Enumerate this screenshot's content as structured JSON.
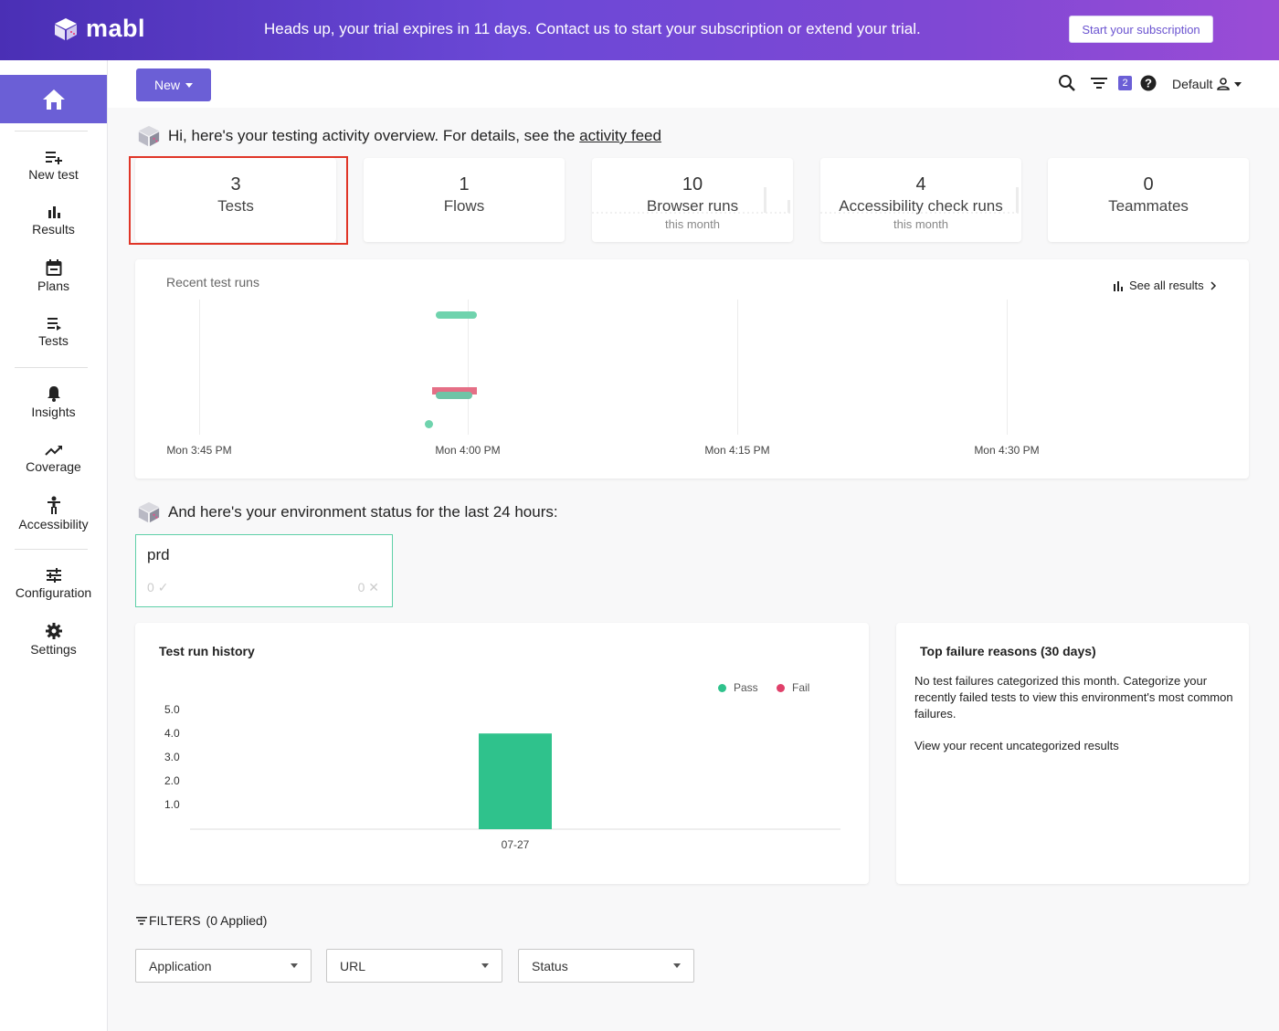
{
  "banner": {
    "logo": "mabl",
    "message": "Heads up, your trial expires in 11 days. Contact us to start your subscription or extend your trial.",
    "subscribe_button": "Start your subscription",
    "gradient_start": "#4a2fb5",
    "gradient_end": "#9a4cd6"
  },
  "sidebar": {
    "accent": "#6b5fd6",
    "home_icon": "home-icon",
    "items": [
      {
        "label": "New test",
        "icon": "add-list-icon"
      },
      {
        "label": "Results",
        "icon": "bar-chart-icon"
      },
      {
        "label": "Plans",
        "icon": "calendar-icon"
      },
      {
        "label": "Tests",
        "icon": "list-icon"
      },
      {
        "label": "Insights",
        "icon": "bell-icon"
      },
      {
        "label": "Coverage",
        "icon": "trend-icon"
      },
      {
        "label": "Accessibility",
        "icon": "accessibility-icon"
      },
      {
        "label": "Configuration",
        "icon": "sliders-icon"
      },
      {
        "label": "Settings",
        "icon": "gear-icon"
      }
    ]
  },
  "toolbar": {
    "new_label": "New",
    "filter_badge": "2",
    "workspace": "Default"
  },
  "overview": {
    "greeting": "Hi, here's your testing activity overview. For details, see the ",
    "greeting_link": "activity feed",
    "stats": [
      {
        "value": "3",
        "label": "Tests",
        "sub": ""
      },
      {
        "value": "1",
        "label": "Flows",
        "sub": ""
      },
      {
        "value": "10",
        "label": "Browser runs",
        "sub": "this month"
      },
      {
        "value": "4",
        "label": "Accessibility check runs",
        "sub": "this month"
      },
      {
        "value": "0",
        "label": "Teammates",
        "sub": ""
      }
    ]
  },
  "recent_runs": {
    "title": "Recent test runs",
    "link": "See all results",
    "ticks": [
      "Mon 3:45 PM",
      "Mon 4:00 PM",
      "Mon 4:15 PM",
      "Mon 4:30 PM"
    ],
    "pass_color": "#6fd3ad",
    "fail_color": "#e56f86"
  },
  "environment": {
    "title": "And here's your environment status for the last 24 hours:",
    "name": "prd",
    "passed": "0",
    "failed": "0"
  },
  "history": {
    "title": "Test run history",
    "legend_pass": "Pass",
    "legend_fail": "Fail",
    "y_ticks": [
      "5.0",
      "4.0",
      "3.0",
      "2.0",
      "1.0"
    ]
  },
  "chart_data": {
    "type": "bar",
    "title": "Test run history",
    "categories": [
      "07-27"
    ],
    "series": [
      {
        "name": "Pass",
        "values": [
          4
        ],
        "color": "#2fc28c"
      },
      {
        "name": "Fail",
        "values": [
          0
        ],
        "color": "#e0406a"
      }
    ],
    "ylim": [
      0,
      5
    ]
  },
  "failures": {
    "title": "Top failure reasons (30 days)",
    "text": "No test failures categorized this month. Categorize your recently failed tests to view this environment's most common failures.",
    "link": "View your recent uncategorized results"
  },
  "filters": {
    "label": "FILTERS",
    "applied": "(0 Applied)",
    "selects": [
      "Application",
      "URL",
      "Status"
    ]
  }
}
